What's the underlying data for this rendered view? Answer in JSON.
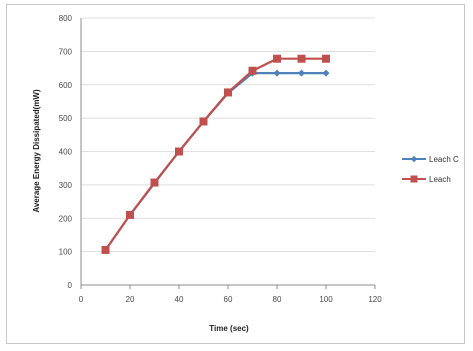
{
  "chart_data": {
    "type": "line",
    "title": "",
    "xlabel": "Time (sec)",
    "ylabel": "Average Energy Dissipated(mW)",
    "xlim": [
      0,
      120
    ],
    "ylim": [
      0,
      800
    ],
    "xticks": [
      0,
      20,
      40,
      60,
      80,
      100,
      120
    ],
    "yticks": [
      0,
      100,
      200,
      300,
      400,
      500,
      600,
      700,
      800
    ],
    "grid": "horizontal",
    "legend_position": "right",
    "series": [
      {
        "name": "Leach C",
        "color": "#4f81bd",
        "marker": "diamond",
        "x": [
          10,
          20,
          30,
          40,
          50,
          60,
          70,
          80,
          90,
          100
        ],
        "y": [
          105,
          210,
          305,
          400,
          490,
          575,
          635,
          635,
          635,
          635
        ]
      },
      {
        "name": "Leach",
        "color": "#c0504d",
        "marker": "square",
        "x": [
          10,
          20,
          30,
          40,
          50,
          60,
          70,
          80,
          90,
          100
        ],
        "y": [
          105,
          210,
          307,
          400,
          490,
          577,
          642,
          678,
          678,
          678
        ]
      }
    ]
  }
}
